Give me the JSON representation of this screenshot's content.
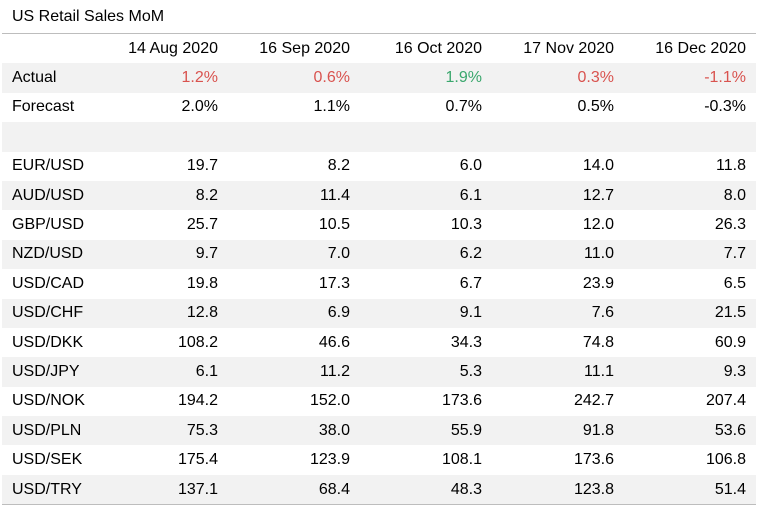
{
  "title": "US Retail Sales MoM",
  "columns": [
    "14 Aug 2020",
    "16 Sep 2020",
    "16 Oct 2020",
    "17 Nov 2020",
    "16 Dec 2020"
  ],
  "actual": {
    "label": "Actual",
    "values": [
      "1.2%",
      "0.6%",
      "1.9%",
      "0.3%",
      "-1.1%"
    ],
    "colors": [
      "#d9534f",
      "#d9534f",
      "#3aa76d",
      "#d9534f",
      "#d9534f"
    ]
  },
  "forecast": {
    "label": "Forecast",
    "values": [
      "2.0%",
      "1.1%",
      "0.7%",
      "0.5%",
      "-0.3%"
    ]
  },
  "rows": [
    {
      "label": "EUR/USD",
      "values": [
        "19.7",
        "8.2",
        "6.0",
        "14.0",
        "11.8"
      ]
    },
    {
      "label": "AUD/USD",
      "values": [
        "8.2",
        "11.4",
        "6.1",
        "12.7",
        "8.0"
      ]
    },
    {
      "label": "GBP/USD",
      "values": [
        "25.7",
        "10.5",
        "10.3",
        "12.0",
        "26.3"
      ]
    },
    {
      "label": "NZD/USD",
      "values": [
        "9.7",
        "7.0",
        "6.2",
        "11.0",
        "7.7"
      ]
    },
    {
      "label": "USD/CAD",
      "values": [
        "19.8",
        "17.3",
        "6.7",
        "23.9",
        "6.5"
      ]
    },
    {
      "label": "USD/CHF",
      "values": [
        "12.8",
        "6.9",
        "9.1",
        "7.6",
        "21.5"
      ]
    },
    {
      "label": "USD/DKK",
      "values": [
        "108.2",
        "46.6",
        "34.3",
        "74.8",
        "60.9"
      ]
    },
    {
      "label": "USD/JPY",
      "values": [
        "6.1",
        "11.2",
        "5.3",
        "11.1",
        "9.3"
      ]
    },
    {
      "label": "USD/NOK",
      "values": [
        "194.2",
        "152.0",
        "173.6",
        "242.7",
        "207.4"
      ]
    },
    {
      "label": "USD/PLN",
      "values": [
        "75.3",
        "38.0",
        "55.9",
        "91.8",
        "53.6"
      ]
    },
    {
      "label": "USD/SEK",
      "values": [
        "175.4",
        "123.9",
        "108.1",
        "173.6",
        "106.8"
      ]
    },
    {
      "label": "USD/TRY",
      "values": [
        "137.1",
        "68.4",
        "48.3",
        "123.8",
        "51.4"
      ]
    }
  ]
}
